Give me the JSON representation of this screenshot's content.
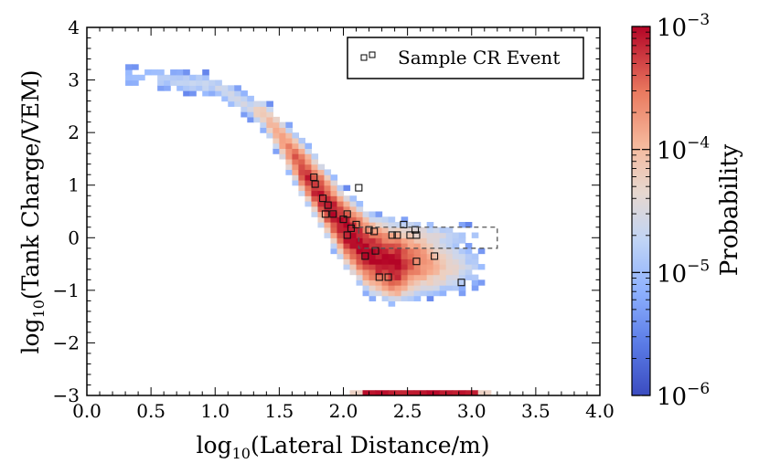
{
  "chart_data": {
    "type": "heatmap",
    "xlabel": "log10(Lateral Distance/m)",
    "ylabel": "log10(Tank Charge/VEM)",
    "xlim": [
      0.0,
      4.0
    ],
    "ylim": [
      -3,
      4
    ],
    "x_ticks": [
      "0.0",
      "0.5",
      "1.0",
      "1.5",
      "2.0",
      "2.5",
      "3.0",
      "3.5",
      "4.0"
    ],
    "y_ticks": [
      "−3",
      "−2",
      "−1",
      "0",
      "1",
      "2",
      "3",
      "4"
    ],
    "colorbar": {
      "label": "Probability",
      "scale": "log",
      "range": [
        1e-06,
        0.001
      ],
      "ticks": [
        {
          "base": "10",
          "exp": "−3",
          "value": 0.001
        },
        {
          "base": "10",
          "exp": "−4",
          "value": 0.0001
        },
        {
          "base": "10",
          "exp": "−5",
          "value": 1e-05
        },
        {
          "base": "10",
          "exp": "−6",
          "value": 1e-06
        }
      ],
      "colors": [
        "#3b4cc0",
        "#6788ee",
        "#9abbff",
        "#c9d7f0",
        "#edd1c2",
        "#f7a889",
        "#e26952",
        "#b40426"
      ]
    },
    "legend": {
      "label": "Sample CR Event",
      "position": "top-right"
    },
    "bin_size": {
      "x": 0.05,
      "y": 0.1
    },
    "density_model": {
      "ridge": [
        [
          0.3,
          3.1
        ],
        [
          1.0,
          2.9
        ],
        [
          1.4,
          2.3
        ],
        [
          1.6,
          1.6
        ],
        [
          1.8,
          0.9
        ],
        [
          2.0,
          0.2
        ],
        [
          2.2,
          -0.3
        ],
        [
          2.4,
          -0.5
        ],
        [
          2.6,
          -0.45
        ],
        [
          2.9,
          -0.55
        ]
      ],
      "upper_arm": [
        [
          2.0,
          0.35
        ],
        [
          2.3,
          0.15
        ],
        [
          2.5,
          0.05
        ],
        [
          2.7,
          0.0
        ],
        [
          2.9,
          0.05
        ]
      ],
      "floor_row": {
        "y": -3,
        "x_start": 2.05,
        "x_end": 3.1,
        "log_p_min": -4.3,
        "log_p_max": -3.0
      }
    },
    "sample_events": [
      {
        "x": 1.77,
        "y": 1.15
      },
      {
        "x": 1.78,
        "y": 1.02
      },
      {
        "x": 1.84,
        "y": 0.75
      },
      {
        "x": 1.86,
        "y": 0.45
      },
      {
        "x": 1.88,
        "y": 0.62
      },
      {
        "x": 1.92,
        "y": 0.45
      },
      {
        "x": 2.0,
        "y": 0.35
      },
      {
        "x": 2.03,
        "y": 0.05
      },
      {
        "x": 2.06,
        "y": 0.18
      },
      {
        "x": 2.1,
        "y": 0.25
      },
      {
        "x": 2.12,
        "y": 0.95
      },
      {
        "x": 2.17,
        "y": -0.35
      },
      {
        "x": 2.2,
        "y": 0.15
      },
      {
        "x": 2.25,
        "y": -0.25
      },
      {
        "x": 2.28,
        "y": -0.75
      },
      {
        "x": 2.35,
        "y": -0.75
      },
      {
        "x": 2.38,
        "y": 0.05
      },
      {
        "x": 2.42,
        "y": 0.05
      },
      {
        "x": 2.47,
        "y": 0.25
      },
      {
        "x": 2.52,
        "y": 0.05
      },
      {
        "x": 2.56,
        "y": 0.15
      },
      {
        "x": 2.57,
        "y": -0.45
      },
      {
        "x": 2.71,
        "y": -0.35
      },
      {
        "x": 2.92,
        "y": -0.85
      },
      {
        "x": 2.57,
        "y": 0.05
      },
      {
        "x": 2.24,
        "y": 0.12
      },
      {
        "x": 2.03,
        "y": 0.45
      }
    ],
    "highlight_box": {
      "x0": 2.12,
      "x1": 3.2,
      "y0": -0.2,
      "y1": 0.2,
      "style": "dashed"
    }
  }
}
